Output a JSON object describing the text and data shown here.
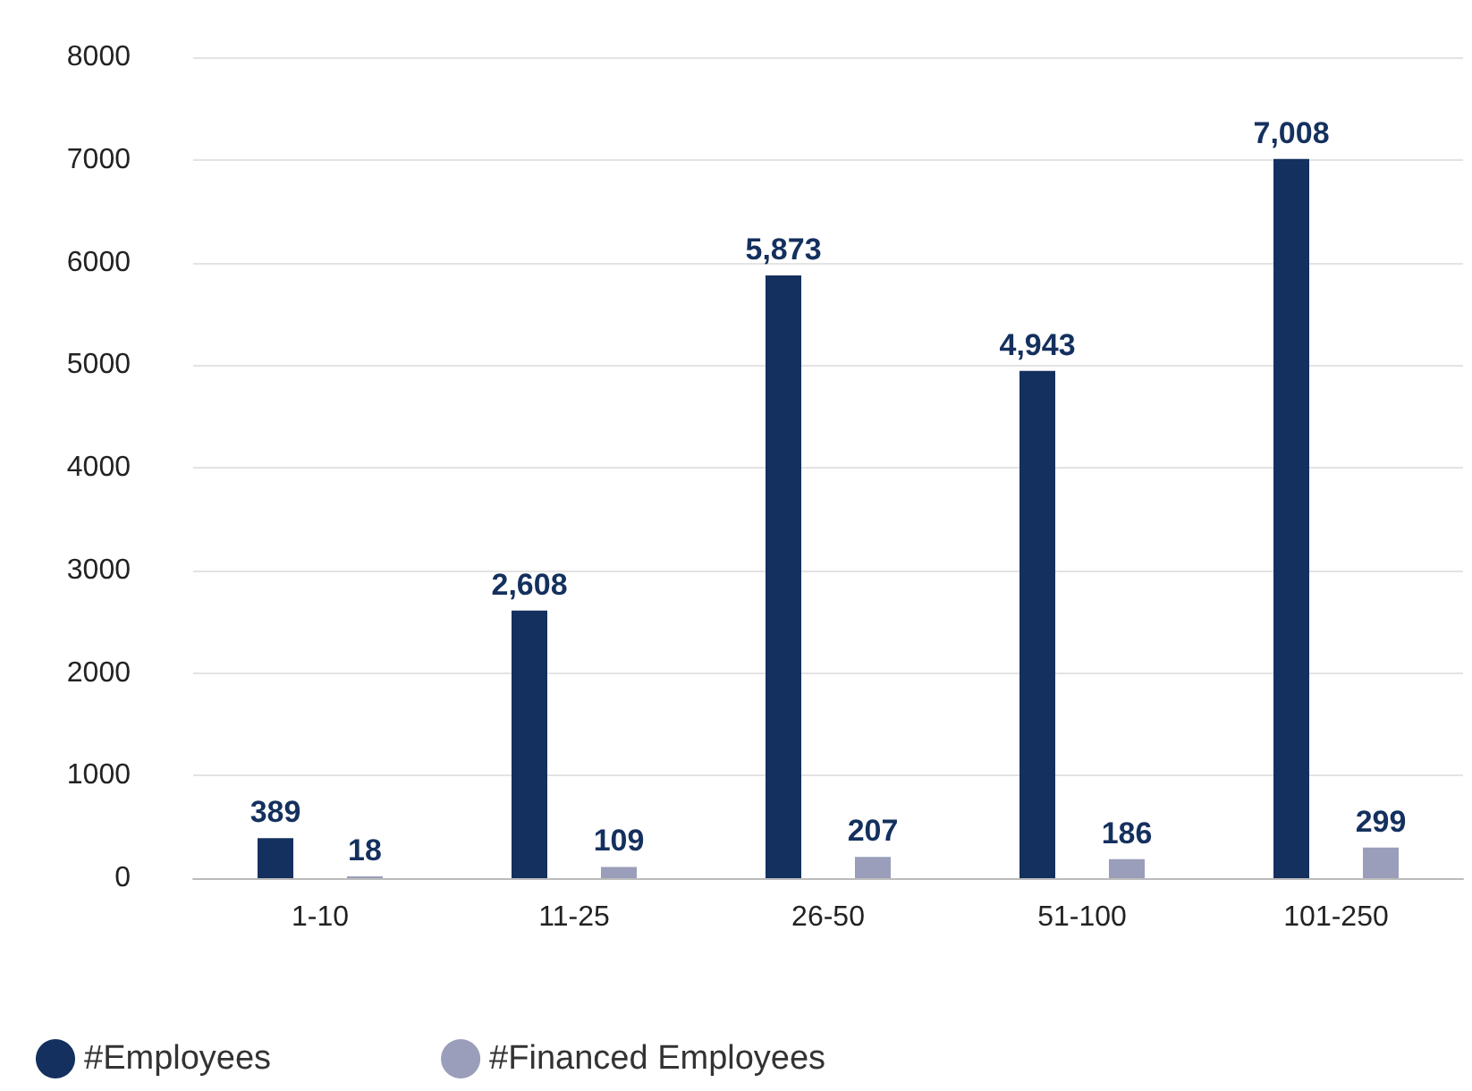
{
  "chart_data": {
    "type": "bar",
    "categories": [
      "1-10",
      "11-25",
      "26-50",
      "51-100",
      "101-250"
    ],
    "series": [
      {
        "name": "#Employees",
        "color": "#14305e",
        "values": [
          389,
          2608,
          5873,
          4943,
          7008
        ],
        "value_labels": [
          "389",
          "2,608",
          "5,873",
          "4,943",
          "7,008"
        ]
      },
      {
        "name": "#Financed Employees",
        "color": "#9a9eba",
        "values": [
          18,
          109,
          207,
          186,
          299
        ],
        "value_labels": [
          "18",
          "109",
          "207",
          "186",
          "299"
        ]
      }
    ],
    "ylim": [
      0,
      8000
    ],
    "yticks": [
      0,
      1000,
      2000,
      3000,
      4000,
      5000,
      6000,
      7000,
      8000
    ],
    "grid": "y",
    "legend": "bottom left"
  }
}
